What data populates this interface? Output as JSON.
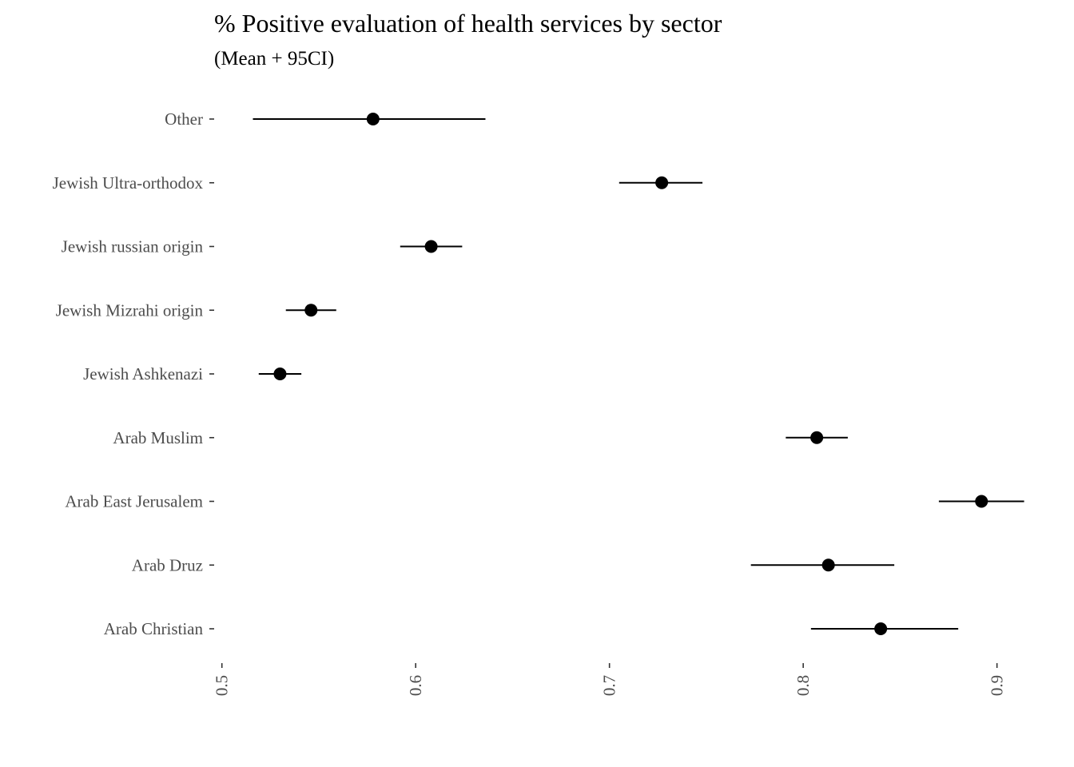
{
  "chart_data": {
    "type": "scatter",
    "title": "% Positive evaluation of health services by sector",
    "subtitle": "(Mean + 95CI)",
    "xlabel": "",
    "ylabel": "",
    "x_ticks": [
      0.5,
      0.6,
      0.7,
      0.8,
      0.9
    ],
    "x_tick_labels": [
      "0.5",
      "0.6",
      "0.7",
      "0.8",
      "0.9"
    ],
    "xlim": [
      0.496,
      0.915
    ],
    "grid": false,
    "legend": "none",
    "categories": [
      "Other",
      "Jewish Ultra-orthodox",
      "Jewish russian origin",
      "Jewish Mizrahi origin",
      "Jewish Ashkenazi",
      "Arab Muslim",
      "Arab East Jerusalem",
      "Arab Druz",
      "Arab Christian"
    ],
    "series": [
      {
        "mean": [
          0.578,
          0.727,
          0.608,
          0.546,
          0.53,
          0.807,
          0.892,
          0.813,
          0.84
        ],
        "lower": [
          0.516,
          0.705,
          0.592,
          0.533,
          0.519,
          0.791,
          0.87,
          0.773,
          0.804
        ],
        "upper": [
          0.636,
          0.748,
          0.624,
          0.559,
          0.541,
          0.823,
          0.914,
          0.847,
          0.88
        ]
      }
    ]
  }
}
